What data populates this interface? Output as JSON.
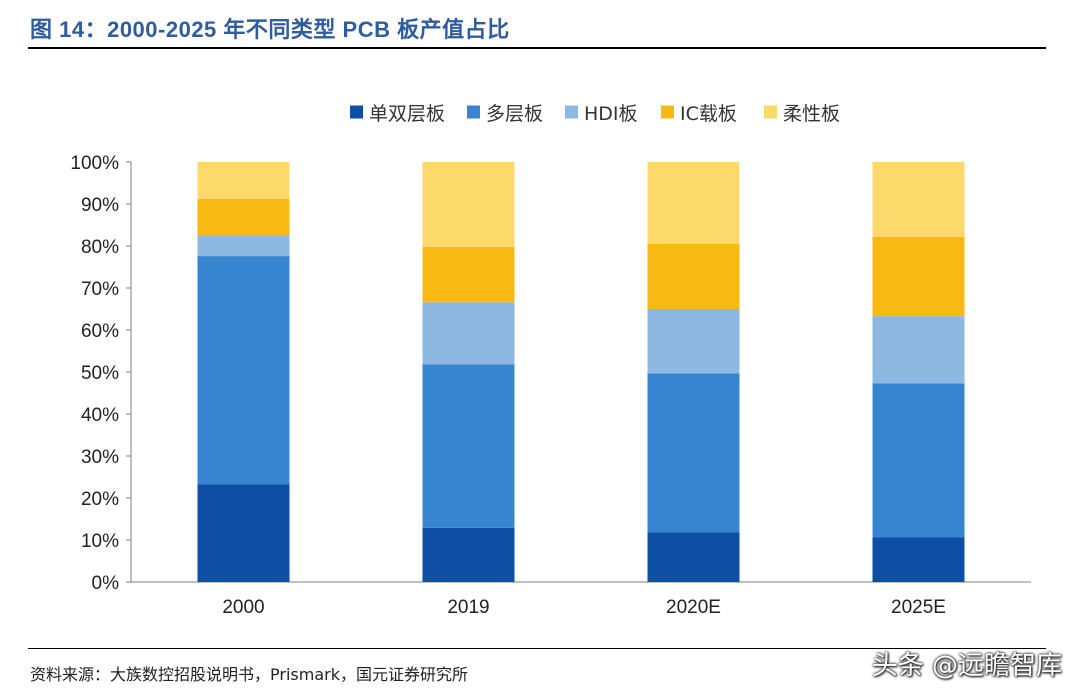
{
  "header": {
    "title": "图 14：2000-2025 年不同类型 PCB 板产值占比"
  },
  "footer": {
    "source": "资料来源：大族数控招股说明书，Prismark，国元证券研究所",
    "watermark": "头条 @远瞻智库"
  },
  "colors": {
    "title": "#2E5C9E",
    "series": [
      "#0E4FA6",
      "#3785D0",
      "#8DB8E2",
      "#F8B912",
      "#FDD96B"
    ]
  },
  "chart_data": {
    "type": "bar",
    "stacked": true,
    "title": "",
    "xlabel": "",
    "ylabel": "",
    "categories": [
      "2000",
      "2019",
      "2020E",
      "2025E"
    ],
    "ylim": [
      0,
      100
    ],
    "yticks": [
      0,
      10,
      20,
      30,
      40,
      50,
      60,
      70,
      80,
      90,
      100
    ],
    "ytick_labels": [
      "0%",
      "10%",
      "20%",
      "30%",
      "40%",
      "50%",
      "60%",
      "70%",
      "80%",
      "90%",
      "100%"
    ],
    "legend_position": "top-center",
    "grid": false,
    "series": [
      {
        "name": "单双层板",
        "values": [
          23.3,
          12.9,
          11.8,
          10.6
        ]
      },
      {
        "name": "多层板",
        "values": [
          54.3,
          38.9,
          37.9,
          36.7
        ]
      },
      {
        "name": "HDI板",
        "values": [
          5.0,
          14.8,
          15.3,
          16.0
        ]
      },
      {
        "name": "IC载板",
        "values": [
          8.6,
          13.2,
          15.5,
          18.9
        ]
      },
      {
        "name": "柔性板",
        "values": [
          8.8,
          20.2,
          19.5,
          17.8
        ]
      }
    ]
  }
}
